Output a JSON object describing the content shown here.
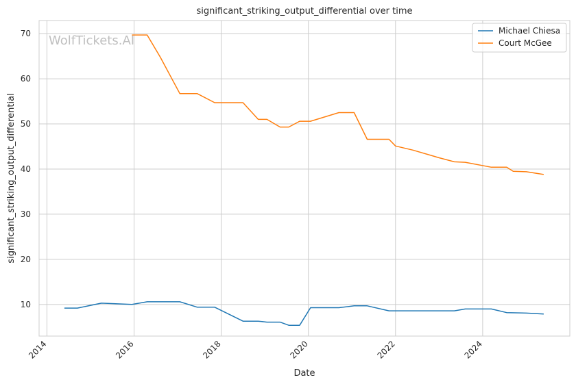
{
  "chart_data": {
    "type": "line",
    "title": "significant_striking_output_differential over time",
    "xlabel": "Date",
    "ylabel": "significant_striking_output_differential",
    "watermark": "WolfTickets.AI",
    "xlim": [
      2013.82,
      2026.0
    ],
    "ylim": [
      3.0,
      72.9
    ],
    "x_ticks": [
      2014,
      2016,
      2018,
      2020,
      2022,
      2024
    ],
    "x_tick_labels": [
      "2014",
      "2016",
      "2018",
      "2020",
      "2022",
      "2024"
    ],
    "y_ticks": [
      10,
      20,
      30,
      40,
      50,
      60,
      70
    ],
    "y_tick_labels": [
      "10",
      "20",
      "30",
      "40",
      "50",
      "60",
      "70"
    ],
    "grid": true,
    "legend_position": "top-right",
    "series": [
      {
        "name": "Michael Chiesa",
        "color": "#1f77b4",
        "x": [
          2014.4,
          2014.7,
          2015.25,
          2015.95,
          2016.3,
          2016.6,
          2017.05,
          2017.45,
          2017.85,
          2018.5,
          2018.85,
          2019.05,
          2019.35,
          2019.55,
          2019.8,
          2020.05,
          2020.7,
          2021.05,
          2021.35,
          2021.85,
          2022.4,
          2023.0,
          2023.35,
          2023.6,
          2024.2,
          2024.55,
          2025.0,
          2025.4
        ],
        "y": [
          9.2,
          9.2,
          10.3,
          10.0,
          10.6,
          10.6,
          10.6,
          9.4,
          9.4,
          6.3,
          6.3,
          6.1,
          6.1,
          5.4,
          5.4,
          9.3,
          9.3,
          9.7,
          9.7,
          8.6,
          8.6,
          8.6,
          8.6,
          9.0,
          9.0,
          8.2,
          8.1,
          7.9
        ]
      },
      {
        "name": "Court McGee",
        "color": "#ff7f0e",
        "x": [
          2015.95,
          2016.3,
          2016.6,
          2017.05,
          2017.45,
          2017.85,
          2018.5,
          2018.85,
          2019.05,
          2019.35,
          2019.55,
          2019.8,
          2020.05,
          2020.7,
          2021.05,
          2021.35,
          2021.85,
          2022.0,
          2022.4,
          2023.0,
          2023.35,
          2023.6,
          2024.2,
          2024.55,
          2024.7,
          2025.0,
          2025.4
        ],
        "y": [
          69.7,
          69.7,
          64.8,
          56.7,
          56.7,
          54.7,
          54.7,
          51.0,
          51.0,
          49.3,
          49.3,
          50.6,
          50.6,
          52.5,
          52.5,
          46.6,
          46.6,
          45.1,
          44.2,
          42.5,
          41.6,
          41.5,
          40.4,
          40.4,
          39.5,
          39.4,
          38.8
        ]
      }
    ]
  }
}
